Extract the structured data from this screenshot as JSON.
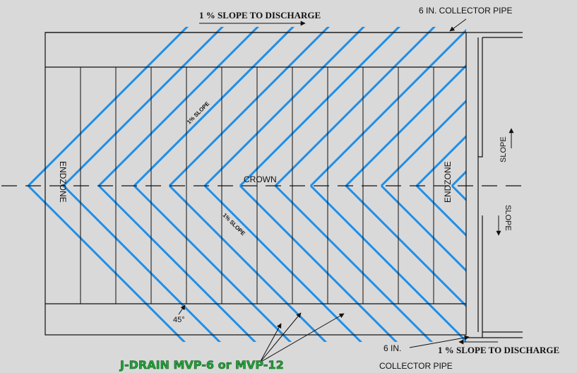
{
  "colors": {
    "background": "#d9d9d9",
    "line": "#111111",
    "drain": "#1f8fe8",
    "product_text": "#22a33a"
  },
  "labels": {
    "slope_top": "1 % SLOPE TO DISCHARGE",
    "collector_top": "6 IN. COLLECTOR PIPE",
    "slope_diag_upper": "1% SLOPE",
    "slope_diag_lower": "1% SLOPE",
    "crown": "CROWN",
    "endzone_left": "ENDZONE",
    "endzone_right": "ENDZONE",
    "slope_right_upper": "SLOPE",
    "slope_right_lower": "SLOPE",
    "angle": "45°",
    "collector_bottom_size": "6 IN.",
    "collector_bottom_name": "COLLECTOR PIPE",
    "slope_bottom": "1 % SLOPE TO DISCHARGE",
    "product": "J-DRAIN MVP-6 or MVP-12"
  }
}
